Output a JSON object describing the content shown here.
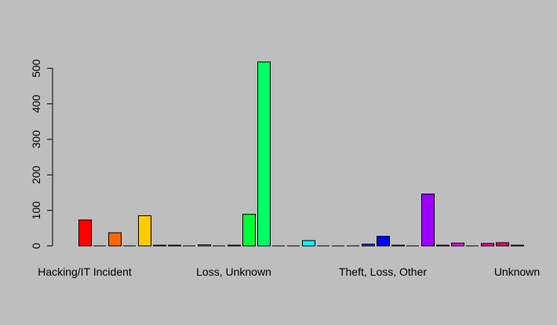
{
  "chart_data": {
    "type": "bar",
    "title": "",
    "xlabel": "",
    "ylabel": "",
    "ylim": [
      0,
      530
    ],
    "y_ticks": [
      0,
      100,
      200,
      300,
      400,
      500
    ],
    "grid": false,
    "legend": "none",
    "background": "#bebebe",
    "x_tick_labels": [
      {
        "text": "Hacking/IT Incident",
        "bar_index": 0
      },
      {
        "text": "Loss, Unknown",
        "bar_index": 10
      },
      {
        "text": "Theft, Loss, Other",
        "bar_index": 20
      },
      {
        "text": "Unknown",
        "bar_index": 29
      }
    ],
    "values": [
      73,
      0,
      37,
      0,
      85,
      2,
      2,
      0,
      3,
      0,
      2,
      89,
      518,
      0,
      0,
      15,
      0,
      0,
      0,
      5,
      27,
      2,
      0,
      146,
      2,
      8,
      0,
      7,
      9,
      2
    ],
    "colors": [
      "#ff0000",
      "#ff3300",
      "#ff6600",
      "#ff9900",
      "#ffcc00",
      "#ffff00",
      "#ccff00",
      "#99ff00",
      "#66ff00",
      "#33ff00",
      "#00ff00",
      "#00ff33",
      "#00ff66",
      "#00ff99",
      "#00ffcc",
      "#00ffff",
      "#00ccff",
      "#0099ff",
      "#0066ff",
      "#0033ff",
      "#0000ff",
      "#3300ff",
      "#6600ff",
      "#9900ff",
      "#cc00ff",
      "#ff00ff",
      "#ff00cc",
      "#ff0099",
      "#ff0066",
      "#ff0033"
    ]
  }
}
